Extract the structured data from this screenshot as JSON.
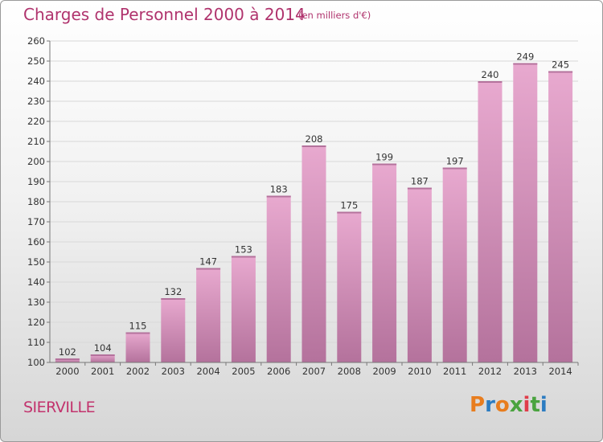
{
  "header": {
    "title": "Charges de Personnel 2000 à 2014",
    "subtitle": "(en milliers d'€)"
  },
  "footer": {
    "commune": "SIERVILLE",
    "logo_text": "Proxiti"
  },
  "colors": {
    "title": "#b0336d",
    "bar_light": "#e8a9cf",
    "bar_dark": "#b4729c",
    "logo_letters": [
      "#e87d1e",
      "#2c7cc1",
      "#e87d1e",
      "#4aa33f",
      "#e03d4a",
      "#4aa33f",
      "#2c7cc1"
    ]
  },
  "chart_data": {
    "type": "bar",
    "categories": [
      "2000",
      "2001",
      "2002",
      "2003",
      "2004",
      "2005",
      "2006",
      "2007",
      "2008",
      "2009",
      "2010",
      "2011",
      "2012",
      "2013",
      "2014"
    ],
    "values": [
      102,
      104,
      115,
      132,
      147,
      153,
      183,
      208,
      175,
      199,
      187,
      197,
      240,
      249,
      245
    ],
    "ylim": [
      100,
      260
    ],
    "yticks": [
      100,
      110,
      120,
      130,
      140,
      150,
      160,
      170,
      180,
      190,
      200,
      210,
      220,
      230,
      240,
      250,
      260
    ],
    "grid": true,
    "data_labels": true,
    "title": "Charges de Personnel 2000 à 2014",
    "xlabel": "",
    "ylabel": ""
  }
}
